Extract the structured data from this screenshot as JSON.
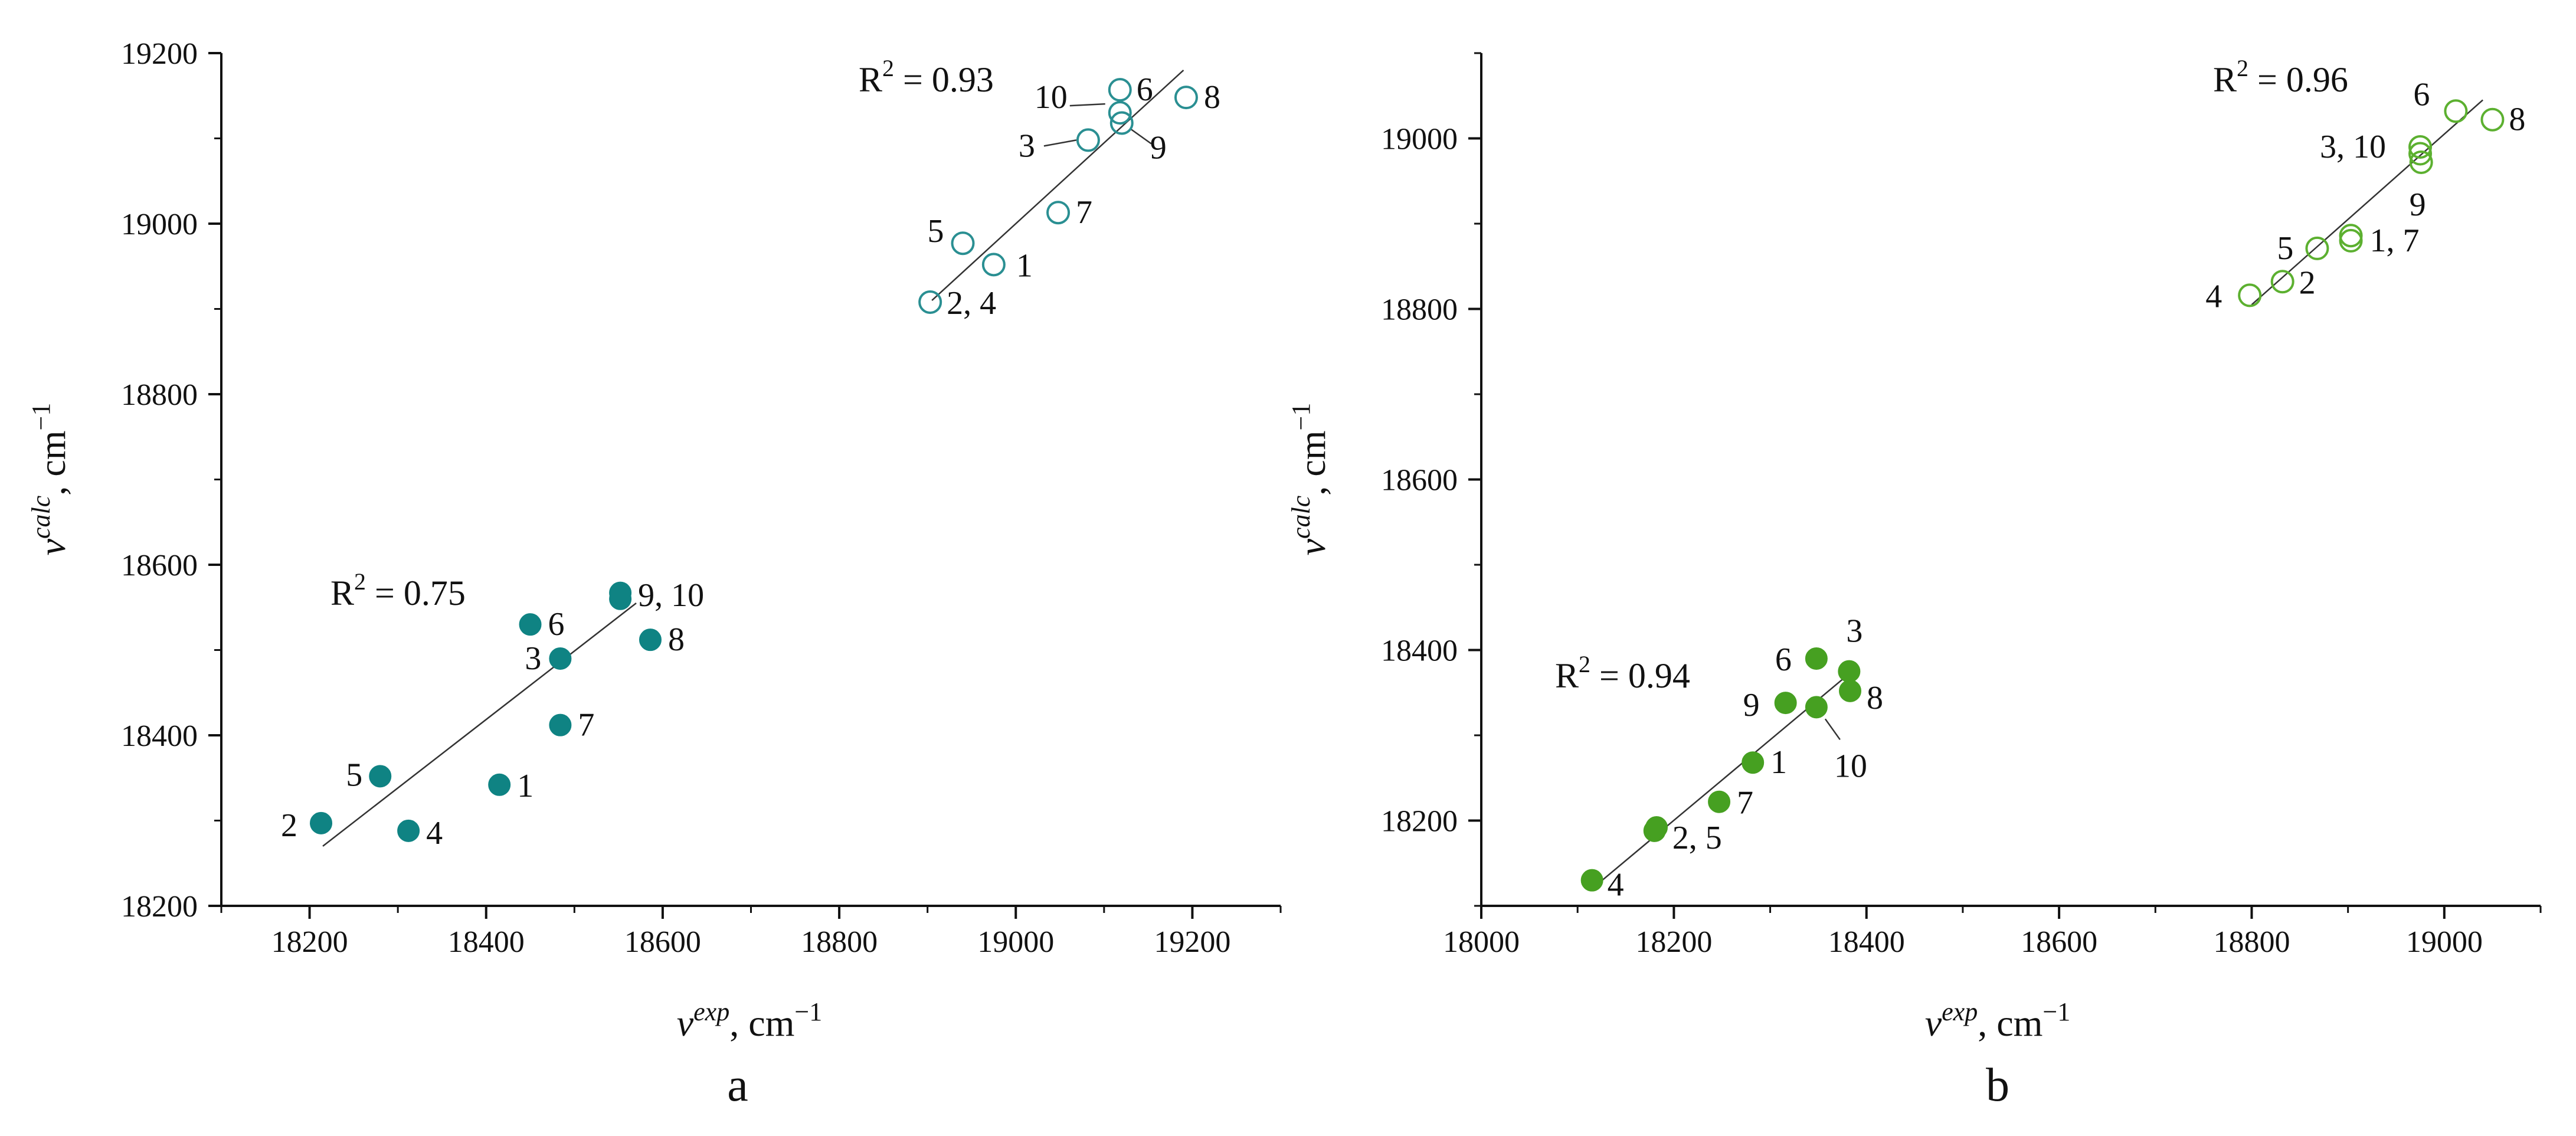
{
  "chart_data": [
    {
      "panel": "a",
      "type": "scatter",
      "xlabel": "νexp, cm−1",
      "ylabel": "νcalc, cm−1",
      "xlabel_base": "ν",
      "xlabel_sup": "exp",
      "xlabel_unit": ", cm",
      "xlabel_unit_sup": "−1",
      "ylabel_base": "ν",
      "ylabel_sup": "calc",
      "ylabel_unit": ", cm",
      "ylabel_unit_sup": "−1",
      "xlim": [
        18100,
        19300
      ],
      "ylim": [
        18200,
        19200
      ],
      "xticks": [
        18200,
        18400,
        18600,
        18800,
        19000,
        19200
      ],
      "yticks": [
        18200,
        18400,
        18600,
        18800,
        19000,
        19200
      ],
      "series": [
        {
          "name": "open",
          "marker": "open-circle",
          "color": "#2a8f92",
          "r2": "R² = 0.93",
          "r2_base": "R",
          "r2_sup": "2",
          "r2_value": " = 0.93",
          "fit": {
            "x": [
              18905,
              19190
            ],
            "y": [
              18910,
              19180
            ]
          },
          "points": [
            {
              "x": 18975,
              "y": 18952,
              "label": "1"
            },
            {
              "x": 18903,
              "y": 18908,
              "label": "2, 4"
            },
            {
              "x": 19082,
              "y": 19098,
              "label": "3"
            },
            {
              "x": 18940,
              "y": 18977,
              "label": "5"
            },
            {
              "x": 19118,
              "y": 19157,
              "label": "6"
            },
            {
              "x": 19048,
              "y": 19013,
              "label": "7"
            },
            {
              "x": 19193,
              "y": 19148,
              "label": "8"
            },
            {
              "x": 19120,
              "y": 19118,
              "label": "9"
            },
            {
              "x": 19118,
              "y": 19130,
              "label": "10"
            }
          ]
        },
        {
          "name": "filled",
          "marker": "filled-circle",
          "color": "#0f8383",
          "r2": "R² = 0.75",
          "r2_base": "R",
          "r2_sup": "2",
          "r2_value": " = 0.75",
          "fit": {
            "x": [
              18215,
              18570
            ],
            "y": [
              18270,
              18555
            ]
          },
          "points": [
            {
              "x": 18415,
              "y": 18342,
              "label": "1"
            },
            {
              "x": 18213,
              "y": 18297,
              "label": "2"
            },
            {
              "x": 18484,
              "y": 18490,
              "label": "3"
            },
            {
              "x": 18312,
              "y": 18288,
              "label": "4"
            },
            {
              "x": 18280,
              "y": 18352,
              "label": "5"
            },
            {
              "x": 18450,
              "y": 18530,
              "label": "6"
            },
            {
              "x": 18484,
              "y": 18412,
              "label": "7"
            },
            {
              "x": 18586,
              "y": 18512,
              "label": "8"
            },
            {
              "x": 18552,
              "y": 18560,
              "label": "9, 10"
            },
            {
              "x": 18552,
              "y": 18567,
              "label": ""
            }
          ]
        }
      ]
    },
    {
      "panel": "b",
      "type": "scatter",
      "xlabel": "νexp, cm−1",
      "ylabel": "νcalc, cm−1",
      "xlabel_base": "ν",
      "xlabel_sup": "exp",
      "xlabel_unit": ", cm",
      "xlabel_unit_sup": "−1",
      "ylabel_base": "ν",
      "ylabel_sup": "calc",
      "ylabel_unit": ", cm",
      "ylabel_unit_sup": "−1",
      "xlim": [
        18000,
        19100
      ],
      "ylim": [
        18100,
        19100
      ],
      "xticks": [
        18000,
        18200,
        18400,
        18600,
        18800,
        19000
      ],
      "yticks": [
        18200,
        18400,
        18600,
        18800,
        19000
      ],
      "series": [
        {
          "name": "open",
          "marker": "open-circle",
          "color": "#5cb030",
          "r2": "R² = 0.96",
          "r2_base": "R",
          "r2_sup": "2",
          "r2_value": " = 0.96",
          "fit": {
            "x": [
              18800,
              19040
            ],
            "y": [
              18805,
              19045
            ]
          },
          "points": [
            {
              "x": 18903,
              "y": 18880,
              "label": "1, 7"
            },
            {
              "x": 18903,
              "y": 18886,
              "label": ""
            },
            {
              "x": 18832,
              "y": 18832,
              "label": "2"
            },
            {
              "x": 18975,
              "y": 18990,
              "label": "3, 10"
            },
            {
              "x": 18975,
              "y": 18982,
              "label": ""
            },
            {
              "x": 18798,
              "y": 18816,
              "label": "4"
            },
            {
              "x": 18868,
              "y": 18871,
              "label": "5"
            },
            {
              "x": 19012,
              "y": 19032,
              "label": "6"
            },
            {
              "x": 19050,
              "y": 19022,
              "label": "8"
            },
            {
              "x": 18976,
              "y": 18972,
              "label": "9"
            }
          ]
        },
        {
          "name": "filled",
          "marker": "filled-circle",
          "color": "#46a021",
          "r2": "R² = 0.94",
          "r2_base": "R",
          "r2_sup": "2",
          "r2_value": " = 0.94",
          "fit": {
            "x": [
              18115,
              18385
            ],
            "y": [
              18120,
              18375
            ]
          },
          "points": [
            {
              "x": 18282,
              "y": 18268,
              "label": "1"
            },
            {
              "x": 18180,
              "y": 18188,
              "label": "2, 5"
            },
            {
              "x": 18182,
              "y": 18192,
              "label": ""
            },
            {
              "x": 18382,
              "y": 18375,
              "label": "3"
            },
            {
              "x": 18115,
              "y": 18130,
              "label": "4"
            },
            {
              "x": 18348,
              "y": 18390,
              "label": "6"
            },
            {
              "x": 18247,
              "y": 18222,
              "label": "7"
            },
            {
              "x": 18383,
              "y": 18352,
              "label": "8"
            },
            {
              "x": 18316,
              "y": 18338,
              "label": "9"
            },
            {
              "x": 18348,
              "y": 18333,
              "label": "10"
            }
          ]
        }
      ]
    }
  ]
}
